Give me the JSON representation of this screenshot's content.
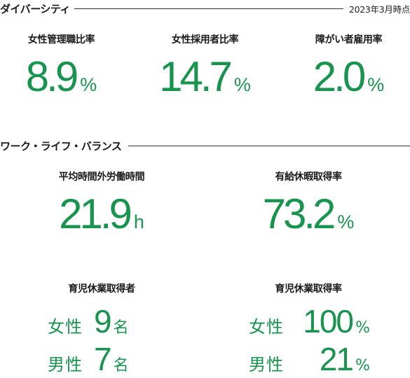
{
  "diversity": {
    "title": "ダイバーシティ",
    "as_of": "2023年3月時点",
    "items": [
      {
        "label": "女性管理職比率",
        "value": "8.9",
        "unit": "%"
      },
      {
        "label": "女性採用者比率",
        "value": "14.7",
        "unit": "%"
      },
      {
        "label": "障がい者雇用率",
        "value": "2.0",
        "unit": "%"
      }
    ]
  },
  "work_life": {
    "title": "ワーク・ライフ・バランス",
    "items": [
      {
        "label": "平均時間外労働時間",
        "value": "21.9",
        "unit": "h"
      },
      {
        "label": "有給休暇取得率",
        "value": "73.2",
        "unit": "%"
      }
    ],
    "childcare_count": {
      "label": "育児休業取得者",
      "rows": [
        {
          "label": "女性",
          "value": "9",
          "unit": "名"
        },
        {
          "label": "男性",
          "value": "7",
          "unit": "名"
        }
      ]
    },
    "childcare_rate": {
      "label": "育児休業取得率",
      "rows": [
        {
          "label": "女性",
          "value": "100",
          "unit": "%"
        },
        {
          "label": "男性",
          "value": "21",
          "unit": "%"
        }
      ]
    }
  },
  "colors": {
    "accent": "#18944f",
    "text": "#1a1a1a",
    "rule": "#333333"
  }
}
